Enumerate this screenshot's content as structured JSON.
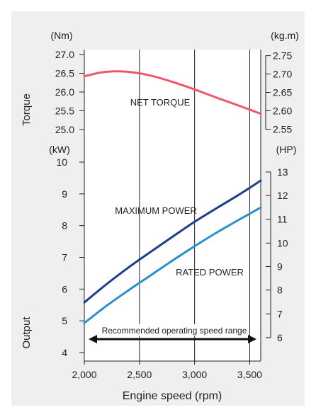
{
  "colors": {
    "background": "#efefef",
    "plot_background": "#ffffff",
    "grid": "#222222",
    "net_torque": "#f0566a",
    "maximum_power": "#1f3d8c",
    "rated_power": "#2a8fd0"
  },
  "chart_data": [
    {
      "type": "line",
      "ylabel": "Torque",
      "ylabel_unit_left": "(Nm)",
      "ylabel_unit_right": "(kg.m)",
      "ylim": [
        25.0,
        27.0
      ],
      "yticks_left": [
        "27.0",
        "26.5",
        "26.0",
        "25.5",
        "25.0"
      ],
      "yticks_left_values": [
        27.0,
        26.5,
        26.0,
        25.5,
        25.0
      ],
      "yticks_right": [
        "2.75",
        "2.70",
        "2.65",
        "2.60",
        "2.55"
      ],
      "yticks_right_values": [
        26.97,
        26.48,
        25.99,
        25.5,
        25.01
      ],
      "xlim": [
        2000,
        3600
      ],
      "series": [
        {
          "name": "NET TORQUE",
          "color": "#f0566a",
          "x": [
            2000,
            2150,
            2300,
            2450,
            2600,
            2800,
            3000,
            3200,
            3400,
            3600
          ],
          "y": [
            26.42,
            26.52,
            26.55,
            26.52,
            26.44,
            26.27,
            26.07,
            25.85,
            25.64,
            25.42
          ]
        }
      ]
    },
    {
      "type": "line",
      "ylabel": "Output",
      "ylabel_unit_left": "(kW)",
      "ylabel_unit_right": "(HP)",
      "xlabel": "Engine speed (rpm)",
      "ylim": [
        4,
        10
      ],
      "xlim": [
        2000,
        3600
      ],
      "xticks": [
        "2,000",
        "2,500",
        "3,000",
        "3,500"
      ],
      "xticks_values": [
        2000,
        2500,
        3000,
        3500
      ],
      "yticks_left": [
        "10",
        "9",
        "8",
        "7",
        "6",
        "5",
        "4"
      ],
      "yticks_left_values": [
        10,
        9,
        8,
        7,
        6,
        5,
        4
      ],
      "yticks_right": [
        "13",
        "12",
        "11",
        "10",
        "9",
        "8",
        "7",
        "6"
      ],
      "yticks_right_values": [
        9.69,
        8.95,
        8.2,
        7.45,
        6.71,
        5.97,
        5.22,
        4.47
      ],
      "series": [
        {
          "name": "MAXIMUM POWER",
          "color": "#1f3d8c",
          "x": [
            2000,
            2200,
            2400,
            2600,
            2800,
            3000,
            3200,
            3400,
            3600
          ],
          "y": [
            5.58,
            6.15,
            6.68,
            7.17,
            7.65,
            8.12,
            8.55,
            8.97,
            9.42
          ]
        },
        {
          "name": "RATED POWER",
          "color": "#2a8fd0",
          "x": [
            2000,
            2200,
            2400,
            2600,
            2800,
            3000,
            3200,
            3400,
            3600
          ],
          "y": [
            4.93,
            5.47,
            5.96,
            6.43,
            6.9,
            7.35,
            7.78,
            8.18,
            8.57
          ]
        }
      ],
      "annotation": {
        "text": "Recommended operating speed range",
        "x_range": [
          2000,
          3600
        ]
      }
    }
  ]
}
